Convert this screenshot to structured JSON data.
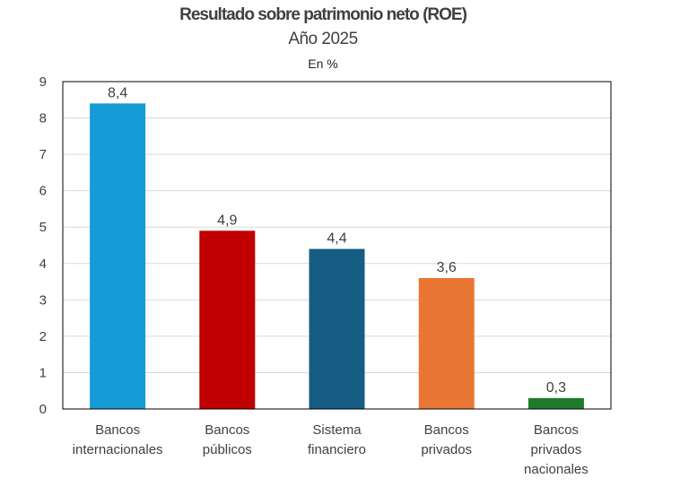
{
  "chart_data": {
    "type": "bar",
    "title": "Resultado sobre patrimonio neto (ROE)",
    "subtitle": "Año 2025",
    "unit": "En %",
    "categories": [
      [
        "Bancos",
        "internacionales"
      ],
      [
        "Bancos",
        "públicos"
      ],
      [
        "Sistema",
        "financiero"
      ],
      [
        "Bancos",
        "privados"
      ],
      [
        "Bancos",
        "privados",
        "nacionales"
      ]
    ],
    "values": [
      8.4,
      4.9,
      4.4,
      3.6,
      0.3
    ],
    "value_labels": [
      "8,4",
      "4,9",
      "4,4",
      "3,6",
      "0,3"
    ],
    "colors": [
      "#169bd7",
      "#c00000",
      "#155d83",
      "#ea7634",
      "#1f7a2c"
    ],
    "ylim": [
      0,
      9
    ],
    "yticks": [
      0,
      1,
      2,
      3,
      4,
      5,
      6,
      7,
      8,
      9
    ],
    "grid": true,
    "legend": "none"
  }
}
